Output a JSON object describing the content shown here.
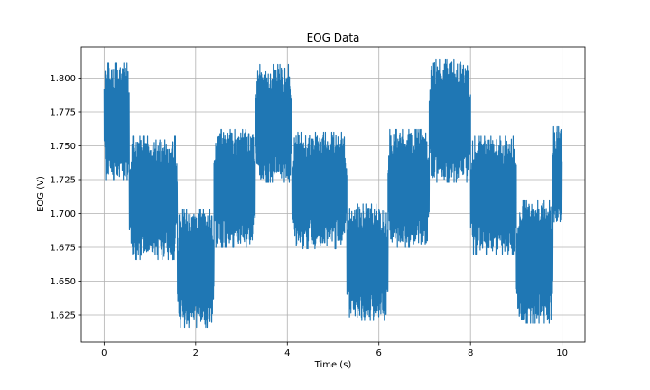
{
  "chart_data": {
    "type": "line",
    "title": "EOG Data",
    "xlabel": "Time (s)",
    "ylabel": "EOG (V)",
    "xlim": [
      -0.5,
      10.5
    ],
    "ylim": [
      1.605,
      1.823
    ],
    "xticks": [
      0,
      2,
      4,
      6,
      8,
      10
    ],
    "xtick_labels": [
      "0",
      "2",
      "4",
      "6",
      "8",
      "10"
    ],
    "yticks": [
      1.625,
      1.65,
      1.675,
      1.7,
      1.725,
      1.75,
      1.775,
      1.8
    ],
    "ytick_labels": [
      "1.625",
      "1.650",
      "1.675",
      "1.700",
      "1.725",
      "1.750",
      "1.775",
      "1.800"
    ],
    "grid": true,
    "legend": "none",
    "series": [
      {
        "color": "#1f77b4",
        "segments": [
          {
            "x": [
              0.0,
              0.55
            ],
            "min": 1.725,
            "max": 1.811
          },
          {
            "x": [
              0.55,
              1.6
            ],
            "min": 1.666,
            "max": 1.757
          },
          {
            "x": [
              1.6,
              2.4
            ],
            "min": 1.616,
            "max": 1.703
          },
          {
            "x": [
              2.4,
              3.3
            ],
            "min": 1.675,
            "max": 1.762
          },
          {
            "x": [
              3.3,
              4.1
            ],
            "min": 1.723,
            "max": 1.81
          },
          {
            "x": [
              4.1,
              5.3
            ],
            "min": 1.674,
            "max": 1.76
          },
          {
            "x": [
              5.3,
              6.2
            ],
            "min": 1.621,
            "max": 1.707
          },
          {
            "x": [
              6.2,
              7.1
            ],
            "min": 1.675,
            "max": 1.762
          },
          {
            "x": [
              7.1,
              8.0
            ],
            "min": 1.723,
            "max": 1.814
          },
          {
            "x": [
              8.0,
              9.0
            ],
            "min": 1.67,
            "max": 1.757
          },
          {
            "x": [
              9.0,
              9.8
            ],
            "min": 1.619,
            "max": 1.71
          },
          {
            "x": [
              9.8,
              10.0
            ],
            "min": 1.689,
            "max": 1.764
          }
        ]
      }
    ]
  }
}
